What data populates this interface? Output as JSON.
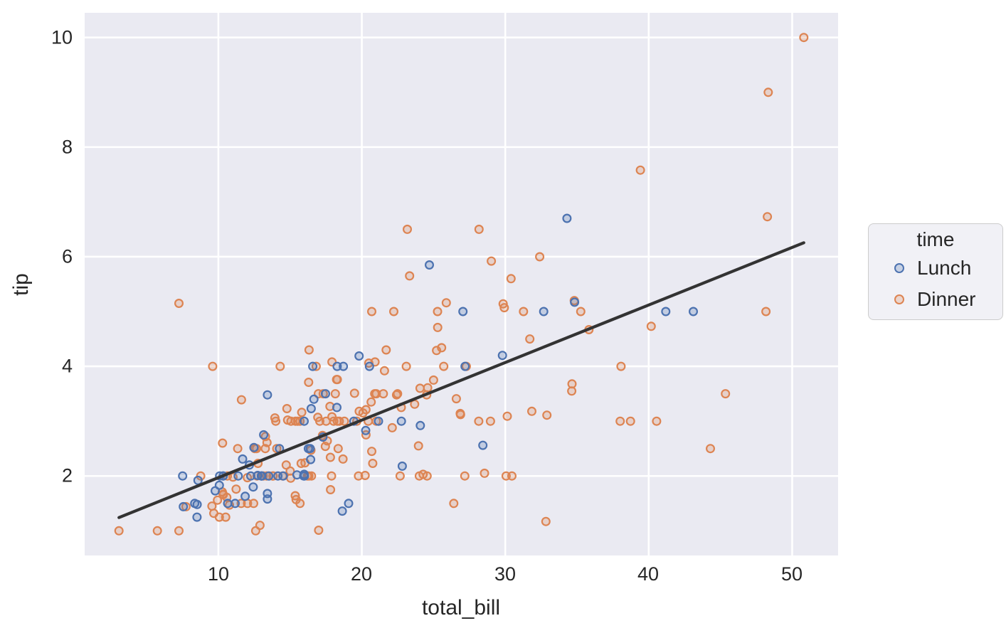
{
  "chart_data": {
    "type": "scatter",
    "title": "",
    "xlabel": "total_bill",
    "ylabel": "tip",
    "axes": {
      "xlim": [
        0.68,
        53.2
      ],
      "ylim": [
        0.55,
        10.45
      ],
      "xticks": [
        10,
        20,
        30,
        40,
        50
      ],
      "yticks": [
        2,
        4,
        6,
        8,
        10
      ],
      "grid": true
    },
    "x_tick_labels": [
      "10",
      "20",
      "30",
      "40",
      "50"
    ],
    "y_tick_labels": [
      "2",
      "4",
      "6",
      "8",
      "10"
    ],
    "style": {
      "plot_bg": "#eaeaf2",
      "grid_color": "#ffffff",
      "text_color": "#262626",
      "marker_fill_opacity": 0.25,
      "regression_line_color": "#333333"
    },
    "legend": {
      "title": "time",
      "position": "right"
    },
    "regression_line": {
      "x_start": 3.07,
      "x_end": 50.81,
      "intercept": 0.92,
      "slope": 0.105
    },
    "series": [
      {
        "name": "Lunch",
        "color": "#4c72b0",
        "points": [
          [
            27.2,
            4.0
          ],
          [
            22.76,
            3.0
          ],
          [
            17.29,
            2.71
          ],
          [
            19.44,
            3.0
          ],
          [
            16.66,
            3.4
          ],
          [
            10.07,
            1.83
          ],
          [
            32.68,
            5.0
          ],
          [
            15.98,
            2.03
          ],
          [
            34.83,
            5.17
          ],
          [
            13.03,
            2.0
          ],
          [
            18.28,
            4.0
          ],
          [
            24.71,
            5.85
          ],
          [
            21.16,
            3.0
          ],
          [
            10.65,
            1.5
          ],
          [
            12.43,
            1.8
          ],
          [
            24.08,
            2.92
          ],
          [
            11.69,
            2.31
          ],
          [
            13.42,
            1.68
          ],
          [
            14.26,
            2.5
          ],
          [
            15.95,
            2.0
          ],
          [
            12.48,
            2.52
          ],
          [
            29.8,
            4.2
          ],
          [
            8.52,
            1.48
          ],
          [
            14.52,
            2.0
          ],
          [
            11.38,
            2.0
          ],
          [
            22.82,
            2.18
          ],
          [
            19.08,
            1.5
          ],
          [
            20.27,
            2.83
          ],
          [
            11.17,
            1.5
          ],
          [
            12.26,
            2.0
          ],
          [
            18.26,
            3.25
          ],
          [
            8.51,
            1.25
          ],
          [
            10.33,
            2.0
          ],
          [
            14.15,
            2.0
          ],
          [
            16.0,
            2.0
          ],
          [
            13.16,
            2.75
          ],
          [
            17.47,
            3.5
          ],
          [
            34.3,
            6.7
          ],
          [
            41.19,
            5.0
          ],
          [
            27.05,
            5.0
          ],
          [
            16.43,
            2.3
          ],
          [
            8.35,
            1.5
          ],
          [
            18.64,
            1.36
          ],
          [
            11.87,
            1.63
          ],
          [
            9.78,
            1.73
          ],
          [
            7.51,
            2.0
          ],
          [
            19.81,
            4.19
          ],
          [
            28.44,
            2.56
          ],
          [
            15.48,
            2.02
          ],
          [
            16.58,
            4.0
          ],
          [
            7.56,
            1.44
          ],
          [
            10.34,
            2.0
          ],
          [
            43.11,
            5.0
          ],
          [
            13.0,
            2.0
          ],
          [
            13.51,
            2.0
          ],
          [
            18.71,
            4.0
          ],
          [
            12.74,
            2.01
          ],
          [
            13.0,
            2.0
          ],
          [
            16.4,
            2.5
          ],
          [
            20.53,
            4.0
          ],
          [
            16.47,
            3.23
          ],
          [
            12.16,
            2.2
          ],
          [
            13.42,
            3.48
          ],
          [
            8.58,
            1.92
          ],
          [
            15.98,
            3.0
          ],
          [
            13.42,
            1.58
          ],
          [
            16.27,
            2.5
          ],
          [
            10.09,
            2.0
          ]
        ]
      },
      {
        "name": "Dinner",
        "color": "#dd8452",
        "points": [
          [
            16.99,
            1.01
          ],
          [
            10.34,
            1.66
          ],
          [
            21.01,
            3.5
          ],
          [
            23.68,
            3.31
          ],
          [
            24.59,
            3.61
          ],
          [
            25.29,
            4.71
          ],
          [
            8.77,
            2.0
          ],
          [
            26.88,
            3.12
          ],
          [
            15.04,
            1.96
          ],
          [
            14.78,
            3.23
          ],
          [
            10.27,
            1.71
          ],
          [
            35.26,
            5.0
          ],
          [
            15.42,
            1.57
          ],
          [
            18.43,
            3.0
          ],
          [
            14.83,
            3.02
          ],
          [
            21.58,
            3.92
          ],
          [
            10.33,
            1.67
          ],
          [
            16.29,
            3.71
          ],
          [
            16.97,
            3.5
          ],
          [
            20.65,
            3.35
          ],
          [
            17.92,
            4.08
          ],
          [
            20.29,
            2.75
          ],
          [
            15.77,
            2.23
          ],
          [
            39.42,
            7.58
          ],
          [
            19.82,
            3.18
          ],
          [
            17.81,
            2.34
          ],
          [
            13.37,
            2.0
          ],
          [
            12.69,
            2.0
          ],
          [
            21.7,
            4.3
          ],
          [
            19.65,
            3.0
          ],
          [
            9.55,
            1.45
          ],
          [
            18.35,
            2.5
          ],
          [
            15.06,
            3.0
          ],
          [
            20.69,
            2.45
          ],
          [
            17.78,
            3.27
          ],
          [
            24.06,
            3.6
          ],
          [
            16.31,
            2.0
          ],
          [
            16.93,
            3.07
          ],
          [
            18.69,
            2.31
          ],
          [
            31.27,
            5.0
          ],
          [
            16.04,
            2.24
          ],
          [
            17.46,
            2.54
          ],
          [
            13.94,
            3.06
          ],
          [
            9.68,
            1.32
          ],
          [
            30.4,
            5.6
          ],
          [
            18.29,
            3.0
          ],
          [
            22.23,
            5.0
          ],
          [
            32.4,
            6.0
          ],
          [
            28.55,
            2.05
          ],
          [
            18.04,
            3.0
          ],
          [
            12.54,
            2.5
          ],
          [
            10.29,
            2.6
          ],
          [
            34.81,
            5.2
          ],
          [
            9.94,
            1.56
          ],
          [
            25.56,
            4.34
          ],
          [
            19.49,
            3.51
          ],
          [
            38.01,
            3.0
          ],
          [
            26.41,
            1.5
          ],
          [
            11.24,
            1.76
          ],
          [
            48.27,
            6.73
          ],
          [
            20.29,
            3.21
          ],
          [
            13.81,
            2.0
          ],
          [
            11.02,
            1.98
          ],
          [
            18.29,
            3.76
          ],
          [
            17.59,
            2.64
          ],
          [
            20.08,
            3.15
          ],
          [
            16.45,
            2.47
          ],
          [
            3.07,
            1.0
          ],
          [
            20.23,
            2.01
          ],
          [
            15.01,
            2.09
          ],
          [
            12.02,
            1.97
          ],
          [
            17.07,
            3.0
          ],
          [
            26.86,
            3.14
          ],
          [
            25.28,
            5.0
          ],
          [
            14.73,
            2.2
          ],
          [
            10.51,
            1.25
          ],
          [
            17.92,
            3.08
          ],
          [
            28.97,
            3.0
          ],
          [
            22.49,
            3.5
          ],
          [
            5.75,
            1.0
          ],
          [
            16.32,
            4.3
          ],
          [
            22.75,
            3.25
          ],
          [
            40.17,
            4.73
          ],
          [
            27.28,
            4.0
          ],
          [
            12.03,
            1.5
          ],
          [
            21.01,
            3.0
          ],
          [
            12.46,
            1.5
          ],
          [
            11.35,
            2.5
          ],
          [
            15.38,
            3.0
          ],
          [
            44.3,
            2.5
          ],
          [
            22.42,
            3.48
          ],
          [
            20.92,
            4.08
          ],
          [
            15.36,
            1.64
          ],
          [
            20.49,
            4.06
          ],
          [
            25.21,
            4.29
          ],
          [
            18.24,
            3.76
          ],
          [
            14.31,
            4.0
          ],
          [
            14.0,
            3.0
          ],
          [
            7.25,
            1.0
          ],
          [
            38.07,
            4.0
          ],
          [
            23.95,
            2.55
          ],
          [
            25.71,
            4.0
          ],
          [
            17.31,
            3.5
          ],
          [
            29.93,
            5.07
          ],
          [
            14.07,
            2.5
          ],
          [
            13.13,
            2.0
          ],
          [
            17.26,
            2.74
          ],
          [
            24.55,
            2.0
          ],
          [
            19.77,
            2.0
          ],
          [
            29.85,
            5.14
          ],
          [
            48.17,
            5.0
          ],
          [
            25.0,
            3.75
          ],
          [
            13.39,
            2.61
          ],
          [
            16.49,
            2.0
          ],
          [
            21.5,
            3.5
          ],
          [
            12.66,
            2.5
          ],
          [
            16.21,
            2.0
          ],
          [
            13.81,
            2.0
          ],
          [
            17.51,
            3.0
          ],
          [
            24.52,
            3.48
          ],
          [
            20.76,
            2.23
          ],
          [
            31.71,
            4.5
          ],
          [
            10.59,
            1.61
          ],
          [
            10.63,
            2.0
          ],
          [
            50.81,
            10.0
          ],
          [
            15.81,
            3.16
          ],
          [
            7.25,
            5.15
          ],
          [
            31.85,
            3.18
          ],
          [
            16.82,
            4.0
          ],
          [
            32.9,
            3.11
          ],
          [
            17.89,
            2.0
          ],
          [
            14.48,
            2.0
          ],
          [
            9.6,
            4.0
          ],
          [
            34.63,
            3.55
          ],
          [
            34.65,
            3.68
          ],
          [
            23.33,
            5.65
          ],
          [
            45.35,
            3.5
          ],
          [
            23.17,
            6.5
          ],
          [
            40.55,
            3.0
          ],
          [
            20.69,
            5.0
          ],
          [
            20.9,
            3.5
          ],
          [
            30.46,
            2.0
          ],
          [
            18.15,
            3.5
          ],
          [
            23.1,
            4.0
          ],
          [
            15.69,
            1.5
          ],
          [
            26.59,
            3.41
          ],
          [
            38.73,
            3.0
          ],
          [
            24.27,
            2.03
          ],
          [
            12.76,
            2.23
          ],
          [
            30.06,
            2.0
          ],
          [
            25.89,
            5.16
          ],
          [
            48.33,
            9.0
          ],
          [
            13.27,
            2.5
          ],
          [
            28.17,
            6.5
          ],
          [
            12.9,
            1.1
          ],
          [
            28.15,
            3.0
          ],
          [
            11.59,
            1.5
          ],
          [
            7.74,
            1.44
          ],
          [
            30.14,
            3.09
          ],
          [
            20.45,
            3.0
          ],
          [
            13.28,
            2.72
          ],
          [
            22.12,
            2.88
          ],
          [
            24.01,
            2.0
          ],
          [
            15.69,
            3.0
          ],
          [
            11.61,
            3.39
          ],
          [
            10.77,
            1.47
          ],
          [
            15.53,
            3.0
          ],
          [
            10.07,
            1.25
          ],
          [
            12.6,
            1.0
          ],
          [
            32.83,
            1.17
          ],
          [
            35.83,
            4.67
          ],
          [
            29.03,
            5.92
          ],
          [
            27.18,
            2.0
          ],
          [
            22.67,
            2.0
          ],
          [
            17.82,
            1.75
          ],
          [
            18.78,
            3.0
          ]
        ]
      }
    ]
  }
}
